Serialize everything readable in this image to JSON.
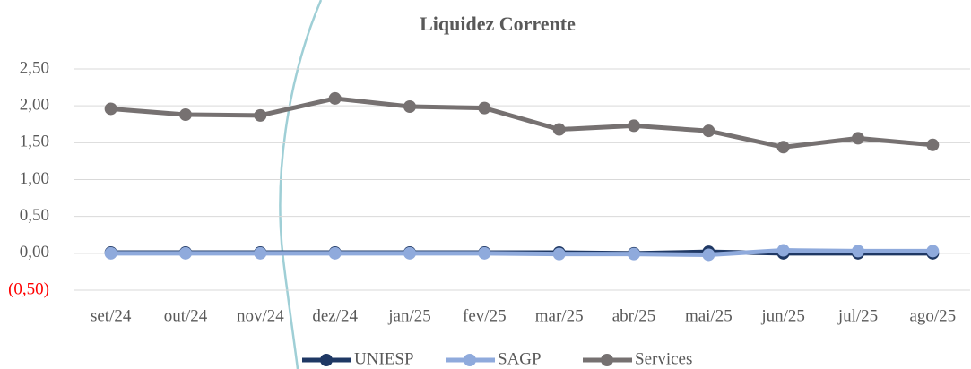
{
  "chart_data": {
    "type": "line",
    "title": "Liquidez Corrente",
    "categories": [
      "set/24",
      "out/24",
      "nov/24",
      "dez/24",
      "jan/25",
      "fev/25",
      "mar/25",
      "abr/25",
      "mai/25",
      "jun/25",
      "jul/25",
      "ago/25"
    ],
    "series": [
      {
        "name": "UNIESP",
        "color": "#1f3864",
        "values": [
          0.01,
          0.01,
          0.01,
          0.01,
          0.01,
          0.01,
          0.01,
          0.0,
          0.02,
          0.0,
          0.0,
          0.0
        ]
      },
      {
        "name": "SAGP",
        "color": "#8faadc",
        "values": [
          0.0,
          0.0,
          0.0,
          0.0,
          0.0,
          0.0,
          -0.01,
          -0.01,
          -0.02,
          0.04,
          0.03,
          0.03
        ]
      },
      {
        "name": "Services",
        "color": "#767171",
        "values": [
          1.96,
          1.88,
          1.87,
          2.1,
          1.99,
          1.97,
          1.68,
          1.73,
          1.66,
          1.44,
          1.56,
          1.47
        ]
      }
    ],
    "ylim": [
      -0.5,
      2.5
    ],
    "yticks": [
      {
        "value": -0.5,
        "label": "(0,50)"
      },
      {
        "value": 0,
        "label": "0,00"
      },
      {
        "value": 0.5,
        "label": "0,50"
      },
      {
        "value": 1,
        "label": "1,00"
      },
      {
        "value": 1.5,
        "label": "1,50"
      },
      {
        "value": 2,
        "label": "2,00"
      },
      {
        "value": 2.5,
        "label": "2,50"
      }
    ],
    "grid": true,
    "legend": "bottom"
  }
}
